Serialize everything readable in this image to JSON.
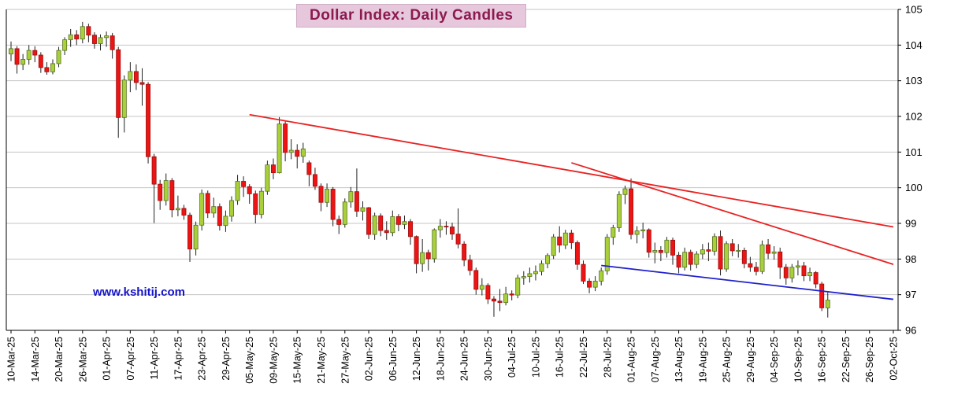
{
  "title": {
    "text": "Dollar Index: Daily Candles",
    "color": "#8b1a4e",
    "background": "#e6c7dc"
  },
  "watermark": {
    "text": "www.kshitij.com",
    "color": "#1414cc"
  },
  "chart_data": {
    "type": "candlestick",
    "title": "Dollar Index: Daily Candles",
    "ylim": [
      96,
      105
    ],
    "y_ticks": [
      96,
      97,
      98,
      99,
      100,
      101,
      102,
      103,
      104,
      105
    ],
    "grid": "horizontal",
    "legend": "none",
    "x_tick_step": 4,
    "x_slots": 149,
    "colors": {
      "up_fill": "#a9cf3b",
      "up_stroke": "#55741d",
      "down_fill": "#ee1414",
      "down_stroke": "#990f0f",
      "wick": "#222222",
      "grid": "#c4c4c4",
      "axis": "#000000",
      "label": "#000000",
      "trend_red": "#e82222",
      "trend_blue": "#2020cc"
    },
    "x_ticks": [
      "10-Mar-25",
      "14-Mar-25",
      "20-Mar-25",
      "26-Mar-25",
      "01-Apr-25",
      "07-Apr-25",
      "11-Apr-25",
      "17-Apr-25",
      "23-Apr-25",
      "29-Apr-25",
      "05-May-25",
      "09-May-25",
      "15-May-25",
      "21-May-25",
      "27-May-25",
      "02-Jun-25",
      "06-Jun-25",
      "12-Jun-25",
      "18-Jun-25",
      "24-Jun-25",
      "30-Jun-25",
      "04-Jul-25",
      "10-Jul-25",
      "16-Jul-25",
      "22-Jul-25",
      "28-Jul-25",
      "01-Aug-25",
      "07-Aug-25",
      "13-Aug-25",
      "19-Aug-25",
      "25-Aug-25",
      "29-Aug-25",
      "04-Sep-25",
      "10-Sep-25",
      "16-Sep-25",
      "22-Sep-25",
      "26-Sep-25",
      "02-Oct-25"
    ],
    "candles": [
      [
        "10-Mar-25",
        103.75,
        104.1,
        103.55,
        103.9
      ],
      [
        "11-Mar-25",
        103.9,
        103.97,
        103.2,
        103.46
      ],
      [
        "12-Mar-25",
        103.46,
        103.75,
        103.3,
        103.6
      ],
      [
        "13-Mar-25",
        103.6,
        104.0,
        103.45,
        103.85
      ],
      [
        "14-Mar-25",
        103.85,
        103.97,
        103.52,
        103.72
      ],
      [
        "17-Mar-25",
        103.72,
        103.8,
        103.22,
        103.37
      ],
      [
        "18-Mar-25",
        103.37,
        103.52,
        103.17,
        103.25
      ],
      [
        "19-Mar-25",
        103.25,
        103.6,
        103.18,
        103.48
      ],
      [
        "20-Mar-25",
        103.48,
        103.95,
        103.38,
        103.85
      ],
      [
        "21-Mar-25",
        103.85,
        104.22,
        103.72,
        104.15
      ],
      [
        "24-Mar-25",
        104.15,
        104.45,
        103.95,
        104.29
      ],
      [
        "25-Mar-25",
        104.29,
        104.42,
        104.0,
        104.17
      ],
      [
        "26-Mar-25",
        104.17,
        104.65,
        104.05,
        104.52
      ],
      [
        "27-Mar-25",
        104.52,
        104.6,
        104.08,
        104.28
      ],
      [
        "28-Mar-25",
        104.28,
        104.36,
        103.9,
        104.04
      ],
      [
        "31-Mar-25",
        104.04,
        104.3,
        103.85,
        104.21
      ],
      [
        "01-Apr-25",
        104.21,
        104.38,
        103.95,
        104.26
      ],
      [
        "02-Apr-25",
        104.26,
        104.34,
        103.62,
        103.87
      ],
      [
        "03-Apr-25",
        103.87,
        103.95,
        101.4,
        101.97
      ],
      [
        "04-Apr-25",
        101.97,
        103.15,
        101.55,
        103.02
      ],
      [
        "07-Apr-25",
        103.02,
        103.52,
        102.68,
        103.26
      ],
      [
        "08-Apr-25",
        103.26,
        103.46,
        102.74,
        102.95
      ],
      [
        "09-Apr-25",
        102.95,
        103.35,
        102.3,
        102.9
      ],
      [
        "10-Apr-25",
        102.9,
        102.96,
        100.68,
        100.87
      ],
      [
        "11-Apr-25",
        100.87,
        100.95,
        99.01,
        100.1
      ],
      [
        "14-Apr-25",
        100.1,
        100.22,
        99.38,
        99.64
      ],
      [
        "15-Apr-25",
        99.64,
        100.4,
        99.5,
        100.2
      ],
      [
        "16-Apr-25",
        100.2,
        100.27,
        99.17,
        99.38
      ],
      [
        "17-Apr-25",
        99.38,
        99.78,
        99.2,
        99.42
      ],
      [
        "18-Apr-25",
        99.42,
        99.52,
        99.1,
        99.23
      ],
      [
        "21-Apr-25",
        99.23,
        99.3,
        97.92,
        98.28
      ],
      [
        "22-Apr-25",
        98.28,
        99.05,
        98.1,
        98.95
      ],
      [
        "23-Apr-25",
        98.95,
        99.95,
        98.8,
        99.84
      ],
      [
        "24-Apr-25",
        99.84,
        99.92,
        99.15,
        99.29
      ],
      [
        "25-Apr-25",
        99.29,
        99.72,
        99.16,
        99.47
      ],
      [
        "28-Apr-25",
        99.47,
        99.56,
        98.8,
        98.94
      ],
      [
        "29-Apr-25",
        98.94,
        99.36,
        98.76,
        99.2
      ],
      [
        "30-Apr-25",
        99.2,
        99.76,
        99.05,
        99.64
      ],
      [
        "01-May-25",
        99.64,
        100.36,
        99.52,
        100.18
      ],
      [
        "02-May-25",
        100.18,
        100.32,
        99.74,
        100.03
      ],
      [
        "05-May-25",
        100.03,
        100.1,
        99.55,
        99.83
      ],
      [
        "06-May-25",
        99.83,
        99.92,
        99.0,
        99.25
      ],
      [
        "07-May-25",
        99.25,
        100.0,
        99.14,
        99.9
      ],
      [
        "08-May-25",
        99.9,
        100.76,
        99.8,
        100.64
      ],
      [
        "09-May-25",
        100.64,
        100.82,
        100.24,
        100.42
      ],
      [
        "12-May-25",
        100.42,
        101.98,
        100.4,
        101.79
      ],
      [
        "13-May-25",
        101.79,
        101.86,
        100.74,
        100.99
      ],
      [
        "14-May-25",
        100.99,
        101.36,
        100.8,
        101.05
      ],
      [
        "15-May-25",
        101.05,
        101.22,
        100.54,
        100.88
      ],
      [
        "16-May-25",
        100.88,
        101.26,
        100.7,
        101.09
      ],
      [
        "19-May-25",
        100.7,
        100.76,
        100.04,
        100.37
      ],
      [
        "20-May-25",
        100.37,
        100.56,
        99.94,
        100.04
      ],
      [
        "21-May-25",
        100.04,
        100.12,
        99.34,
        99.59
      ],
      [
        "22-May-25",
        99.59,
        100.12,
        99.46,
        99.96
      ],
      [
        "23-May-25",
        99.96,
        100.02,
        98.92,
        99.11
      ],
      [
        "26-May-25",
        99.11,
        99.22,
        98.7,
        98.97
      ],
      [
        "27-May-25",
        98.97,
        99.7,
        98.88,
        99.6
      ],
      [
        "28-May-25",
        99.6,
        100.02,
        99.44,
        99.89
      ],
      [
        "29-May-25",
        99.89,
        100.54,
        99.18,
        99.34
      ],
      [
        "30-May-25",
        99.34,
        99.62,
        99.08,
        99.44
      ],
      [
        "02-Jun-25",
        99.44,
        99.46,
        98.56,
        98.69
      ],
      [
        "03-Jun-25",
        98.69,
        99.3,
        98.54,
        99.21
      ],
      [
        "04-Jun-25",
        99.21,
        99.28,
        98.64,
        98.8
      ],
      [
        "05-Jun-25",
        98.8,
        99.06,
        98.54,
        98.74
      ],
      [
        "06-Jun-25",
        98.74,
        99.36,
        98.64,
        99.19
      ],
      [
        "09-Jun-25",
        99.19,
        99.26,
        98.78,
        98.97
      ],
      [
        "10-Jun-25",
        98.97,
        99.22,
        98.84,
        99.05
      ],
      [
        "11-Jun-25",
        99.05,
        99.12,
        98.4,
        98.63
      ],
      [
        "12-Jun-25",
        98.63,
        98.66,
        97.6,
        97.87
      ],
      [
        "13-Jun-25",
        97.87,
        98.56,
        97.64,
        98.18
      ],
      [
        "16-Jun-25",
        98.18,
        98.26,
        97.68,
        98.01
      ],
      [
        "17-Jun-25",
        98.01,
        98.86,
        97.9,
        98.82
      ],
      [
        "18-Jun-25",
        98.82,
        99.12,
        98.6,
        98.92
      ],
      [
        "19-Jun-25",
        98.92,
        99.06,
        98.68,
        98.9
      ],
      [
        "20-Jun-25",
        98.9,
        99.02,
        98.54,
        98.7
      ],
      [
        "23-Jun-25",
        98.7,
        99.42,
        98.3,
        98.42
      ],
      [
        "24-Jun-25",
        98.42,
        98.5,
        97.8,
        97.97
      ],
      [
        "25-Jun-25",
        97.97,
        98.12,
        97.54,
        97.68
      ],
      [
        "26-Jun-25",
        97.68,
        97.76,
        97.0,
        97.15
      ],
      [
        "27-Jun-25",
        97.15,
        97.46,
        96.98,
        97.26
      ],
      [
        "30-Jun-25",
        97.26,
        97.32,
        96.74,
        96.88
      ],
      [
        "01-Jul-25",
        96.88,
        96.96,
        96.38,
        96.82
      ],
      [
        "02-Jul-25",
        96.82,
        97.16,
        96.54,
        96.78
      ],
      [
        "03-Jul-25",
        96.78,
        97.22,
        96.7,
        97.02
      ],
      [
        "04-Jul-25",
        97.02,
        97.12,
        96.84,
        96.99
      ],
      [
        "07-Jul-25",
        96.99,
        97.56,
        96.9,
        97.47
      ],
      [
        "08-Jul-25",
        97.47,
        97.66,
        97.28,
        97.51
      ],
      [
        "09-Jul-25",
        97.51,
        97.76,
        97.34,
        97.59
      ],
      [
        "10-Jul-25",
        97.59,
        97.82,
        97.4,
        97.65
      ],
      [
        "11-Jul-25",
        97.65,
        97.96,
        97.54,
        97.87
      ],
      [
        "14-Jul-25",
        97.87,
        98.16,
        97.74,
        98.1
      ],
      [
        "15-Jul-25",
        98.1,
        98.7,
        98.0,
        98.62
      ],
      [
        "16-Jul-25",
        98.62,
        98.92,
        98.18,
        98.39
      ],
      [
        "17-Jul-25",
        98.39,
        98.82,
        98.28,
        98.73
      ],
      [
        "18-Jul-25",
        98.73,
        98.82,
        98.28,
        98.46
      ],
      [
        "21-Jul-25",
        98.46,
        98.52,
        97.7,
        97.85
      ],
      [
        "22-Jul-25",
        97.85,
        97.96,
        97.3,
        97.38
      ],
      [
        "23-Jul-25",
        97.38,
        97.46,
        97.04,
        97.21
      ],
      [
        "24-Jul-25",
        97.21,
        97.52,
        97.1,
        97.38
      ],
      [
        "25-Jul-25",
        97.38,
        97.76,
        97.26,
        97.67
      ],
      [
        "28-Jul-25",
        97.67,
        98.7,
        97.56,
        98.61
      ],
      [
        "29-Jul-25",
        98.61,
        98.96,
        98.4,
        98.88
      ],
      [
        "30-Jul-25",
        98.88,
        99.9,
        98.76,
        99.81
      ],
      [
        "31-Jul-25",
        99.81,
        100.06,
        99.54,
        99.97
      ],
      [
        "01-Aug-25",
        99.97,
        100.26,
        98.55,
        98.69
      ],
      [
        "04-Aug-25",
        98.69,
        98.92,
        98.44,
        98.79
      ],
      [
        "05-Aug-25",
        98.79,
        99.02,
        98.58,
        98.82
      ],
      [
        "06-Aug-25",
        98.82,
        98.86,
        98.04,
        98.19
      ],
      [
        "07-Aug-25",
        98.19,
        98.46,
        97.88,
        98.24
      ],
      [
        "08-Aug-25",
        98.24,
        98.36,
        97.94,
        98.18
      ],
      [
        "11-Aug-25",
        98.18,
        98.62,
        98.04,
        98.53
      ],
      [
        "12-Aug-25",
        98.53,
        98.6,
        97.84,
        98.11
      ],
      [
        "13-Aug-25",
        98.11,
        98.2,
        97.6,
        97.77
      ],
      [
        "14-Aug-25",
        97.77,
        98.32,
        97.68,
        98.19
      ],
      [
        "15-Aug-25",
        98.19,
        98.26,
        97.68,
        97.85
      ],
      [
        "18-Aug-25",
        97.85,
        98.22,
        97.74,
        98.14
      ],
      [
        "19-Aug-25",
        98.14,
        98.42,
        98.0,
        98.26
      ],
      [
        "20-Aug-25",
        98.26,
        98.46,
        97.94,
        98.22
      ],
      [
        "21-Aug-25",
        98.22,
        98.72,
        98.1,
        98.63
      ],
      [
        "22-Aug-25",
        98.63,
        98.8,
        97.54,
        97.72
      ],
      [
        "25-Aug-25",
        97.72,
        98.5,
        97.64,
        98.43
      ],
      [
        "26-Aug-25",
        98.43,
        98.56,
        98.08,
        98.23
      ],
      [
        "27-Aug-25",
        98.23,
        98.42,
        98.04,
        98.24
      ],
      [
        "28-Aug-25",
        98.24,
        98.32,
        97.74,
        97.87
      ],
      [
        "29-Aug-25",
        97.87,
        98.06,
        97.64,
        97.77
      ],
      [
        "01-Sep-25",
        97.77,
        97.92,
        97.54,
        97.65
      ],
      [
        "02-Sep-25",
        97.65,
        98.52,
        97.58,
        98.4
      ],
      [
        "03-Sep-25",
        98.4,
        98.56,
        98.0,
        98.16
      ],
      [
        "04-Sep-25",
        98.16,
        98.36,
        97.98,
        98.2
      ],
      [
        "05-Sep-25",
        98.2,
        98.32,
        97.44,
        97.77
      ],
      [
        "08-Sep-25",
        97.77,
        97.86,
        97.28,
        97.47
      ],
      [
        "09-Sep-25",
        97.47,
        97.86,
        97.34,
        97.77
      ],
      [
        "10-Sep-25",
        97.77,
        97.96,
        97.54,
        97.81
      ],
      [
        "11-Sep-25",
        97.81,
        97.92,
        97.38,
        97.53
      ],
      [
        "12-Sep-25",
        97.53,
        97.76,
        97.38,
        97.62
      ],
      [
        "15-Sep-25",
        97.62,
        97.66,
        97.18,
        97.3
      ],
      [
        "16-Sep-25",
        97.3,
        97.36,
        96.54,
        96.63
      ],
      [
        "17-Sep-25",
        96.63,
        97.06,
        96.36,
        96.85
      ]
    ],
    "trendlines": [
      {
        "color": "red",
        "from": {
          "i": 40,
          "p": 102.05
        },
        "to": {
          "i": 148,
          "p": 98.9
        }
      },
      {
        "color": "red",
        "from": {
          "i": 94,
          "p": 100.7
        },
        "to": {
          "i": 148,
          "p": 97.85
        }
      },
      {
        "color": "blue",
        "from": {
          "i": 99,
          "p": 97.82
        },
        "to": {
          "i": 148,
          "p": 96.87
        }
      }
    ]
  }
}
